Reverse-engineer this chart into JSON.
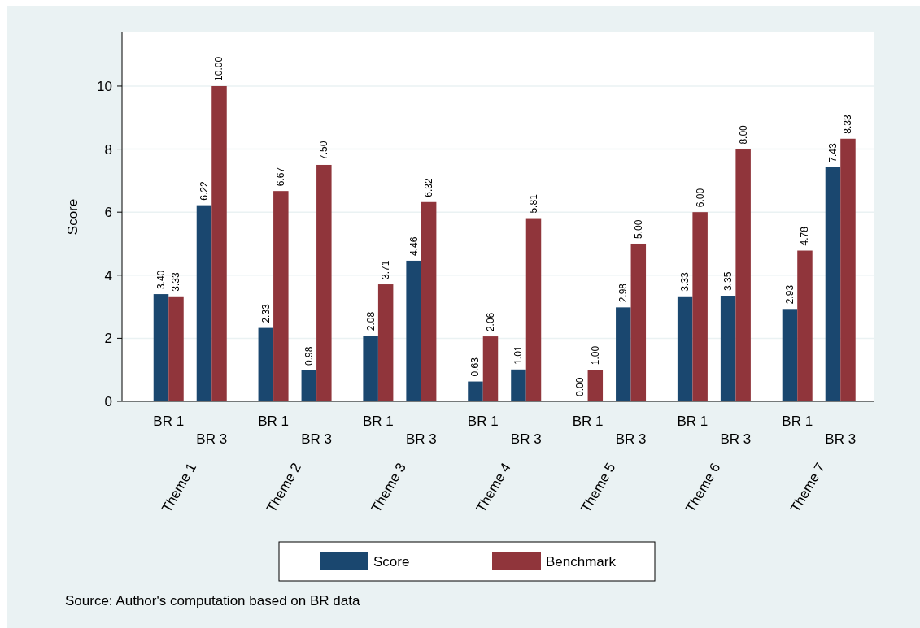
{
  "chart_data": {
    "type": "bar",
    "ylabel": "Score",
    "categories": [
      "BR 1",
      "BR 3",
      "BR 1",
      "BR 3",
      "BR 1",
      "BR 3",
      "BR 1",
      "BR 3",
      "BR 1",
      "BR 3",
      "BR 1",
      "BR 3",
      "BR 1",
      "BR 3"
    ],
    "series": [
      {
        "name": "Score",
        "color": "#1a476f",
        "values": [
          3.4,
          6.22,
          2.33,
          0.98,
          2.08,
          4.46,
          0.63,
          1.01,
          0.0,
          2.98,
          3.33,
          3.35,
          2.93,
          7.43
        ],
        "value_labels": [
          "3.40",
          "6.22",
          "2.33",
          "0.98",
          "2.08",
          "4.46",
          "0.63",
          "1.01",
          "0.00",
          "2.98",
          "3.33",
          "3.35",
          "2.93",
          "7.43"
        ]
      },
      {
        "name": "Benchmark",
        "color": "#90353b",
        "values": [
          3.33,
          10.0,
          6.67,
          7.5,
          3.71,
          6.32,
          2.06,
          5.81,
          1.0,
          5.0,
          6.0,
          8.0,
          4.78,
          8.33
        ],
        "value_labels": [
          "3.33",
          "10.00",
          "6.67",
          "7.50",
          "3.71",
          "6.32",
          "2.06",
          "5.81",
          "1.00",
          "5.00",
          "6.00",
          "8.00",
          "4.78",
          "8.33"
        ]
      }
    ],
    "ylim": [
      0,
      11.7
    ],
    "yticks": [
      0,
      2,
      4,
      6,
      8,
      10
    ],
    "grid": "y",
    "legend": "bottom",
    "annotations": [
      "Theme 1",
      "Theme 2",
      "Theme 3",
      "Theme 4",
      "Theme 5",
      "Theme 6",
      "Theme 7",
      "Source: Author's computation based on BR data"
    ]
  }
}
